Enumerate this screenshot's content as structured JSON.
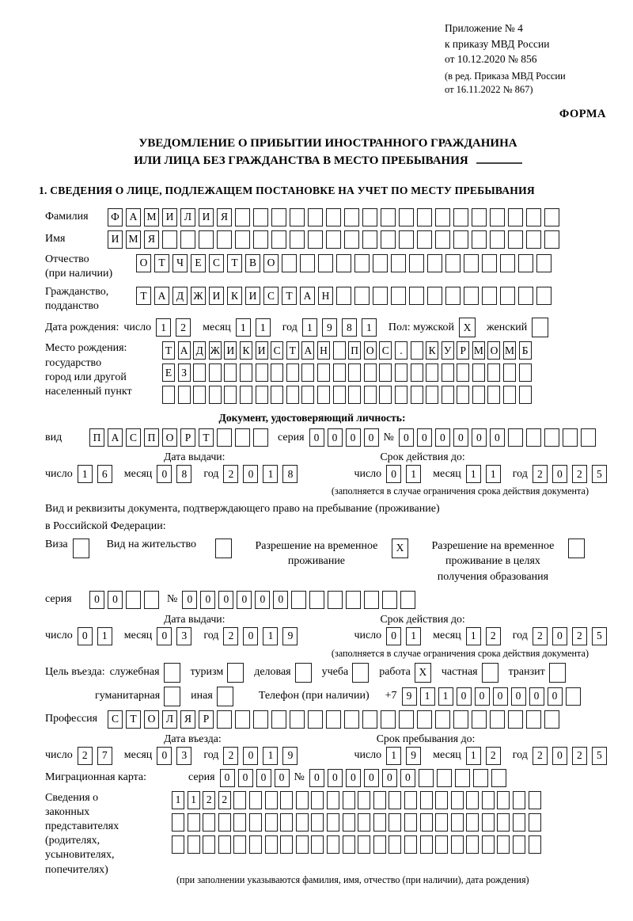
{
  "labels": {
    "day": "число",
    "month": "месяц",
    "year": "год"
  },
  "header": {
    "appendix_lines": [
      "Приложение № 4",
      "к приказу МВД России",
      "от 10.12.2020 № 856"
    ],
    "amendment_lines": [
      "(в ред. Приказа МВД России",
      "от 16.11.2022 № 867)"
    ],
    "form_label": "ФОРМА"
  },
  "title": {
    "line1": "УВЕДОМЛЕНИЕ О ПРИБЫТИИ ИНОСТРАННОГО ГРАЖДАНИНА",
    "line2": "ИЛИ ЛИЦА БЕЗ ГРАЖДАНСТВА В МЕСТО ПРЕБЫВАНИЯ"
  },
  "section1": {
    "heading": "1. СВЕДЕНИЯ О ЛИЦЕ, ПОДЛЕЖАЩЕМ ПОСТАНОВКЕ НА УЧЕТ ПО МЕСТУ ПРЕБЫВАНИЯ"
  },
  "person": {
    "surname": {
      "label": "Фамилия",
      "boxes": {
        "value": "ФАМИЛИЯ",
        "total": 25
      }
    },
    "name": {
      "label": "Имя",
      "boxes": {
        "value": "ИМЯ",
        "total": 25
      }
    },
    "patronymic": {
      "label_lines": [
        "Отчество",
        "(при наличии)"
      ],
      "boxes": {
        "value": "ОТЧЕСТВО",
        "total": 23
      }
    },
    "citizenship": {
      "label_lines": [
        "Гражданство,",
        "подданство"
      ],
      "boxes": {
        "value": "ТАДЖИКИСТАН",
        "total": 23
      }
    }
  },
  "birth": {
    "label": "Дата рождения:",
    "date": {
      "day": "12",
      "month": "11",
      "year": "1981"
    }
  },
  "sex": {
    "male_label": "Пол: мужской",
    "male": {
      "value": "X",
      "total": 1
    },
    "female_label": "женский",
    "female": {
      "value": "",
      "total": 1
    }
  },
  "birthplace": {
    "label_lines": [
      "Место рождения:",
      "государство",
      "город или другой",
      "населенный пункт"
    ],
    "row1": {
      "value": "ТАДЖИКИСТАН ПОС. КУРМОМБ",
      "total": 24
    },
    "row2": {
      "value": "ЕЗ",
      "total": 24
    },
    "row3": {
      "value": "",
      "total": 24
    }
  },
  "identity_doc": {
    "heading": "Документ, удостоверяющий личность:",
    "type_label": "вид",
    "type": {
      "value": "ПАСПОРТ",
      "total": 10
    },
    "series_label": "серия",
    "series": {
      "value": "0000",
      "total": 4
    },
    "number_label": "№",
    "number": {
      "value": "000000",
      "total": 11
    },
    "issue_title": "Дата выдачи:",
    "issue": {
      "day": "16",
      "month": "08",
      "year": "2018"
    },
    "expiry_title": "Срок действия до:",
    "expiry": {
      "day": "01",
      "month": "11",
      "year": "2025"
    },
    "note": "(заполняется в случае ограничения срока действия документа)"
  },
  "residence_doc": {
    "intro_lines": [
      "Вид и реквизиты документа, подтверждающего право на пребывание (проживание)",
      "в Российской Федерации:"
    ],
    "visa_label": "Виза",
    "visa": {
      "value": "",
      "total": 1
    },
    "permit_label": "Вид на жительство",
    "permit": {
      "value": "",
      "total": 1
    },
    "temp_lines": [
      "Разрешение на временное",
      "проживание"
    ],
    "temp": {
      "value": "X",
      "total": 1
    },
    "edu_lines": [
      "Разрешение на временное",
      "проживание в целях",
      "получения образования"
    ],
    "edu": {
      "value": "",
      "total": 1
    },
    "series_label": "серия",
    "series": {
      "value": "00",
      "total": 4
    },
    "number_label": "№",
    "number": {
      "value": "000000",
      "total": 13
    },
    "issue_title": "Дата выдачи:",
    "issue": {
      "day": "01",
      "month": "03",
      "year": "2019"
    },
    "expiry_title": "Срок действия до:",
    "expiry": {
      "day": "01",
      "month": "12",
      "year": "2025"
    },
    "note": "(заполняется в случае ограничения срока действия документа)"
  },
  "purpose": {
    "label": "Цель въезда:",
    "items": [
      {
        "label": "служебная",
        "checked": ""
      },
      {
        "label": "туризм",
        "checked": ""
      },
      {
        "label": "деловая",
        "checked": ""
      },
      {
        "label": "учеба",
        "checked": ""
      },
      {
        "label": "работа",
        "checked": "X"
      },
      {
        "label": "частная",
        "checked": ""
      },
      {
        "label": "транзит",
        "checked": ""
      }
    ],
    "items2": [
      {
        "label": "гуманитарная",
        "checked": ""
      },
      {
        "label": "иная",
        "checked": ""
      }
    ]
  },
  "phone": {
    "label": "Телефон (при наличии)",
    "prefix": "+7",
    "digits": {
      "value": "911000000",
      "total": 10
    }
  },
  "profession": {
    "label": "Профессия",
    "boxes": {
      "value": "СТОЛЯР",
      "total": 25
    }
  },
  "entry": {
    "issue_title": "Дата въезда:",
    "date": {
      "day": "27",
      "month": "03",
      "year": "2019"
    },
    "expiry_title": "Срок пребывания до:",
    "until": {
      "day": "19",
      "month": "12",
      "year": "2025"
    }
  },
  "migration_card": {
    "label": "Миграционная карта:",
    "series_label": "серия",
    "series": {
      "value": "0000",
      "total": 4
    },
    "number_label": "№",
    "number": {
      "value": "000000",
      "total": 11
    }
  },
  "guardians": {
    "label_lines": [
      "Сведения о",
      "законных",
      "представителях",
      "(родителях,",
      "усыновителях,",
      "попечителях)"
    ],
    "row1": {
      "value": "1122",
      "total": 24
    },
    "row2": {
      "value": "",
      "total": 24
    },
    "row3": {
      "value": "",
      "total": 24
    },
    "note": "(при заполнении указываются фамилия, имя, отчество (при наличии), дата рождения)"
  }
}
